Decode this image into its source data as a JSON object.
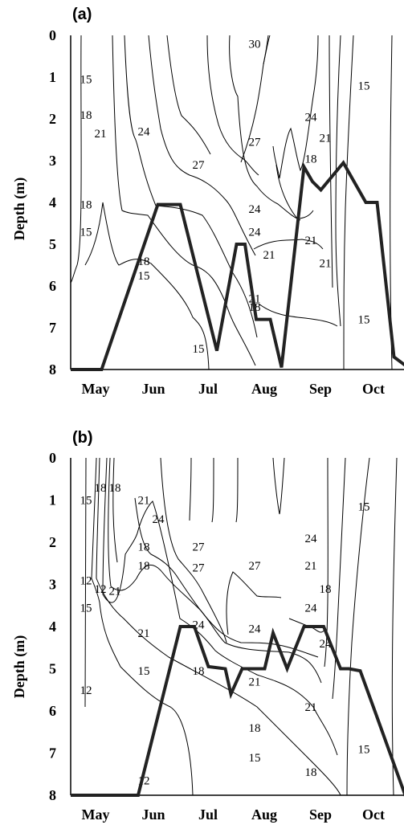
{
  "chart_data": [
    {
      "type": "line",
      "panel_label": "(a)",
      "ylabel": "Depth (m)",
      "ylim": [
        0,
        8
      ],
      "y_inverted": true,
      "yticks": [
        "0",
        "1",
        "2",
        "3",
        "4",
        "5",
        "6",
        "7",
        "8"
      ],
      "xticks": [
        "May",
        "Jun",
        "Jul",
        "Aug",
        "Sep",
        "Oct"
      ],
      "contour_labels": [
        {
          "text": "15",
          "x": "May",
          "y": 1.05
        },
        {
          "text": "18",
          "x": "May",
          "y": 1.9
        },
        {
          "text": "21",
          "x": "May",
          "y": 2.35
        },
        {
          "text": "24",
          "x": "Jun",
          "y": 2.3
        },
        {
          "text": "27",
          "x": "Jul",
          "y": 3.1
        },
        {
          "text": "30",
          "x": "Aug",
          "y": 0.2
        },
        {
          "text": "27",
          "x": "Aug",
          "y": 2.55
        },
        {
          "text": "24",
          "x": "Sep",
          "y": 1.95
        },
        {
          "text": "21",
          "x": "Sep",
          "y": 2.45
        },
        {
          "text": "18",
          "x": "Sep",
          "y": 2.95
        },
        {
          "text": "15",
          "x": "Oct",
          "y": 1.2
        },
        {
          "text": "18",
          "x": "May",
          "y": 4.05
        },
        {
          "text": "15",
          "x": "May",
          "y": 4.7
        },
        {
          "text": "15",
          "x": "Jun",
          "y": 5.75
        },
        {
          "text": "18",
          "x": "Jun",
          "y": 5.4
        },
        {
          "text": "15",
          "x": "Jul",
          "y": 7.5
        },
        {
          "text": "24",
          "x": "Aug",
          "y": 4.7
        },
        {
          "text": "24",
          "x": "Aug",
          "y": 4.15
        },
        {
          "text": "21",
          "x": "Aug",
          "y": 5.25
        },
        {
          "text": "21",
          "x": "Sep",
          "y": 4.9
        },
        {
          "text": "21",
          "x": "Sep",
          "y": 5.45
        },
        {
          "text": "21",
          "x": "Aug",
          "y": 6.3
        },
        {
          "text": "18",
          "x": "Aug",
          "y": 6.5
        },
        {
          "text": "15",
          "x": "Oct",
          "y": 6.8
        }
      ],
      "series": [
        {
          "x": [
            0,
            0.55,
            1.55,
            1.95,
            2.6,
            2.95,
            3.1,
            3.3,
            3.55,
            3.75,
            4.15,
            4.3,
            4.45,
            4.85,
            5.25,
            5.45,
            5.75,
            6.05,
            6.45,
            6.9
          ],
          "y": [
            8,
            8,
            4.05,
            4.05,
            7.55,
            5.0,
            5.0,
            6.8,
            6.8,
            7.95,
            3.15,
            3.5,
            3.7,
            3.05,
            4.0,
            4.0,
            7.7,
            8,
            8,
            8
          ]
        }
      ]
    },
    {
      "type": "line",
      "panel_label": "(b)",
      "ylabel": "Depth (m)",
      "ylim": [
        0,
        8
      ],
      "y_inverted": true,
      "yticks": [
        "0",
        "1",
        "2",
        "3",
        "4",
        "5",
        "6",
        "7",
        "8"
      ],
      "xticks": [
        "May",
        "Jun",
        "Jul",
        "Aug",
        "Sep",
        "Oct"
      ],
      "contour_labels": [
        {
          "text": "15",
          "x": "May",
          "y": 1.0
        },
        {
          "text": "18",
          "x": "May",
          "y": 0.7
        },
        {
          "text": "18",
          "x": "May",
          "y": 0.7
        },
        {
          "text": "21",
          "x": "Jun",
          "y": 1.0
        },
        {
          "text": "24",
          "x": "Jun",
          "y": 1.45
        },
        {
          "text": "18",
          "x": "Jun",
          "y": 2.1
        },
        {
          "text": "18",
          "x": "Jun",
          "y": 2.55
        },
        {
          "text": "27",
          "x": "Jul",
          "y": 2.1
        },
        {
          "text": "27",
          "x": "Jul",
          "y": 2.6
        },
        {
          "text": "27",
          "x": "Aug",
          "y": 2.55
        },
        {
          "text": "24",
          "x": "Sep",
          "y": 1.9
        },
        {
          "text": "21",
          "x": "Sep",
          "y": 2.55
        },
        {
          "text": "18",
          "x": "Sep",
          "y": 3.1
        },
        {
          "text": "24",
          "x": "Sep",
          "y": 3.55
        },
        {
          "text": "15",
          "x": "Oct",
          "y": 1.15
        },
        {
          "text": "12",
          "x": "May",
          "y": 2.9
        },
        {
          "text": "12",
          "x": "May",
          "y": 3.1
        },
        {
          "text": "21",
          "x": "May",
          "y": 3.15
        },
        {
          "text": "15",
          "x": "May",
          "y": 3.55
        },
        {
          "text": "21",
          "x": "Jun",
          "y": 4.15
        },
        {
          "text": "24",
          "x": "Jul",
          "y": 3.95
        },
        {
          "text": "24",
          "x": "Aug",
          "y": 4.05
        },
        {
          "text": "24",
          "x": "Sep",
          "y": 4.4
        },
        {
          "text": "15",
          "x": "Jun",
          "y": 5.05
        },
        {
          "text": "18",
          "x": "Jul",
          "y": 5.05
        },
        {
          "text": "21",
          "x": "Aug",
          "y": 5.3
        },
        {
          "text": "21",
          "x": "Sep",
          "y": 5.9
        },
        {
          "text": "18",
          "x": "Aug",
          "y": 6.4
        },
        {
          "text": "15",
          "x": "Aug",
          "y": 7.1
        },
        {
          "text": "18",
          "x": "Sep",
          "y": 7.45
        },
        {
          "text": "12",
          "x": "May",
          "y": 5.5
        },
        {
          "text": "12",
          "x": "Jun",
          "y": 7.65
        },
        {
          "text": "15",
          "x": "Oct",
          "y": 6.9
        }
      ],
      "series": [
        {
          "x": [
            0,
            1.2,
            1.95,
            2.2,
            2.45,
            2.75,
            2.85,
            3.05,
            3.45,
            3.6,
            3.85,
            4.15,
            4.5,
            4.8,
            4.95,
            5.15,
            5.45,
            5.95,
            6.35,
            6.85
          ],
          "y": [
            8,
            8,
            4.0,
            4.0,
            4.95,
            5.0,
            5.6,
            5.0,
            5.0,
            4.15,
            5.0,
            4.0,
            4.0,
            5.0,
            5.0,
            5.05,
            6.15,
            8.0,
            8.0,
            8.0
          ]
        }
      ]
    }
  ]
}
